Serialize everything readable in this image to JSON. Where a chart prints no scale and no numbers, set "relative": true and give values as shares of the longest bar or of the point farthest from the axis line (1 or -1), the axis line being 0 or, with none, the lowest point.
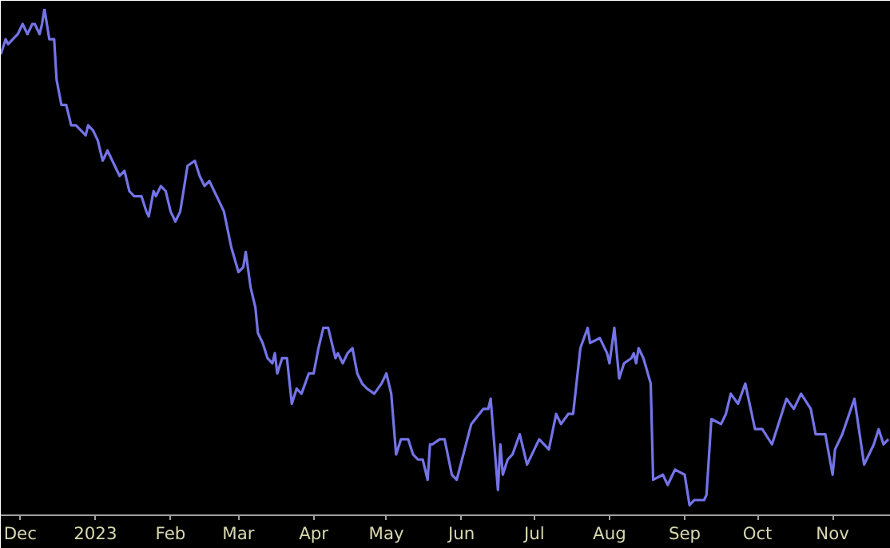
{
  "chart_data": {
    "type": "line",
    "relative": true,
    "x": [
      "2022-11-23",
      "2022-11-25",
      "2022-11-26",
      "2022-11-30",
      "2022-12-02",
      "2022-12-04",
      "2022-12-06",
      "2022-12-07",
      "2022-12-09",
      "2022-12-10",
      "2022-12-11",
      "2022-12-13",
      "2022-12-15",
      "2022-12-16",
      "2022-12-18",
      "2022-12-20",
      "2022-12-22",
      "2022-12-24",
      "2022-12-26",
      "2022-12-28",
      "2022-12-29",
      "2022-12-31",
      "2023-01-02",
      "2023-01-04",
      "2023-01-06",
      "2023-01-08",
      "2023-01-11",
      "2023-01-13",
      "2023-01-15",
      "2023-01-17",
      "2023-01-20",
      "2023-01-22",
      "2023-01-23",
      "2023-01-25",
      "2023-01-26",
      "2023-01-28",
      "2023-01-30",
      "2023-02-01",
      "2023-02-03",
      "2023-02-05",
      "2023-02-08",
      "2023-02-11",
      "2023-02-13",
      "2023-02-15",
      "2023-02-17",
      "2023-02-19",
      "2023-02-21",
      "2023-02-23",
      "2023-02-26",
      "2023-03-01",
      "2023-03-03",
      "2023-03-04",
      "2023-03-06",
      "2023-03-08",
      "2023-03-09",
      "2023-03-11",
      "2023-03-13",
      "2023-03-15",
      "2023-03-16",
      "2023-03-17",
      "2023-03-19",
      "2023-03-21",
      "2023-03-23",
      "2023-03-25",
      "2023-03-27",
      "2023-03-30",
      "2023-04-01",
      "2023-04-03",
      "2023-04-05",
      "2023-04-07",
      "2023-04-10",
      "2023-04-11",
      "2023-04-13",
      "2023-04-15",
      "2023-04-17",
      "2023-04-19",
      "2023-04-21",
      "2023-04-23",
      "2023-04-26",
      "2023-04-29",
      "2023-05-01",
      "2023-05-03",
      "2023-05-05",
      "2023-05-07",
      "2023-05-08",
      "2023-05-10",
      "2023-05-12",
      "2023-05-14",
      "2023-05-16",
      "2023-05-18",
      "2023-05-19",
      "2023-05-20",
      "2023-05-23",
      "2023-05-25",
      "2023-05-28",
      "2023-05-30",
      "2023-06-05",
      "2023-06-10",
      "2023-06-12",
      "2023-06-13",
      "2023-06-16",
      "2023-06-17",
      "2023-06-18",
      "2023-06-20",
      "2023-06-22",
      "2023-06-25",
      "2023-06-28",
      "2023-07-03",
      "2023-07-07",
      "2023-07-10",
      "2023-07-12",
      "2023-07-15",
      "2023-07-17",
      "2023-07-20",
      "2023-07-23",
      "2023-07-24",
      "2023-07-28",
      "2023-07-31",
      "2023-08-01",
      "2023-08-03",
      "2023-08-05",
      "2023-08-07",
      "2023-08-10",
      "2023-08-11",
      "2023-08-12",
      "2023-08-13",
      "2023-08-15",
      "2023-08-18",
      "2023-08-19",
      "2023-08-23",
      "2023-08-25",
      "2023-08-28",
      "2023-09-01",
      "2023-09-03",
      "2023-09-05",
      "2023-09-09",
      "2023-09-10",
      "2023-09-12",
      "2023-09-16",
      "2023-09-18",
      "2023-09-20",
      "2023-09-23",
      "2023-09-26",
      "2023-09-30",
      "2023-10-03",
      "2023-10-07",
      "2023-10-09",
      "2023-10-13",
      "2023-10-16",
      "2023-10-19",
      "2023-10-23",
      "2023-10-25",
      "2023-10-29",
      "2023-11-01",
      "2023-11-02",
      "2023-11-05",
      "2023-11-10",
      "2023-11-14",
      "2023-11-18",
      "2023-11-20",
      "2023-11-22",
      "2023-11-24"
    ],
    "series": [
      {
        "color": "#7474e8",
        "values": [
          0.91,
          0.94,
          0.93,
          0.95,
          0.97,
          0.95,
          0.97,
          0.97,
          0.95,
          0.97,
          1.0,
          0.94,
          0.94,
          0.86,
          0.81,
          0.81,
          0.77,
          0.77,
          0.76,
          0.75,
          0.77,
          0.76,
          0.74,
          0.7,
          0.72,
          0.7,
          0.67,
          0.68,
          0.64,
          0.63,
          0.63,
          0.6,
          0.59,
          0.64,
          0.63,
          0.65,
          0.64,
          0.6,
          0.58,
          0.6,
          0.69,
          0.7,
          0.67,
          0.65,
          0.66,
          0.64,
          0.62,
          0.6,
          0.53,
          0.48,
          0.49,
          0.52,
          0.45,
          0.41,
          0.36,
          0.34,
          0.31,
          0.3,
          0.32,
          0.28,
          0.31,
          0.31,
          0.22,
          0.25,
          0.24,
          0.28,
          0.28,
          0.33,
          0.37,
          0.37,
          0.31,
          0.32,
          0.3,
          0.32,
          0.33,
          0.28,
          0.26,
          0.25,
          0.24,
          0.26,
          0.28,
          0.24,
          0.12,
          0.15,
          0.15,
          0.15,
          0.12,
          0.11,
          0.11,
          0.07,
          0.14,
          0.14,
          0.15,
          0.15,
          0.08,
          0.07,
          0.18,
          0.21,
          0.21,
          0.23,
          0.05,
          0.14,
          0.08,
          0.11,
          0.12,
          0.16,
          0.1,
          0.15,
          0.13,
          0.2,
          0.18,
          0.2,
          0.2,
          0.33,
          0.37,
          0.34,
          0.35,
          0.32,
          0.3,
          0.37,
          0.27,
          0.3,
          0.31,
          0.32,
          0.3,
          0.33,
          0.31,
          0.26,
          0.07,
          0.08,
          0.06,
          0.09,
          0.08,
          0.02,
          0.03,
          0.03,
          0.04,
          0.19,
          0.18,
          0.2,
          0.24,
          0.22,
          0.26,
          0.17,
          0.17,
          0.14,
          0.17,
          0.23,
          0.21,
          0.24,
          0.21,
          0.16,
          0.16,
          0.08,
          0.13,
          0.16,
          0.23,
          0.1,
          0.14,
          0.17,
          0.14,
          0.15
        ]
      }
    ],
    "xlim": [
      "2022-11-23",
      "2023-11-25"
    ],
    "xticks": [
      {
        "value": "2022-12-01",
        "label": "Dec"
      },
      {
        "value": "2023-01-01",
        "label": "2023"
      },
      {
        "value": "2023-02-01",
        "label": "Feb"
      },
      {
        "value": "2023-03-01",
        "label": "Mar"
      },
      {
        "value": "2023-04-01",
        "label": "Apr"
      },
      {
        "value": "2023-05-01",
        "label": "May"
      },
      {
        "value": "2023-06-01",
        "label": "Jun"
      },
      {
        "value": "2023-07-01",
        "label": "Jul"
      },
      {
        "value": "2023-08-01",
        "label": "Aug"
      },
      {
        "value": "2023-09-01",
        "label": "Sep"
      },
      {
        "value": "2023-10-01",
        "label": "Oct"
      },
      {
        "value": "2023-11-01",
        "label": "Nov"
      }
    ],
    "grid": false,
    "marker": "none",
    "line_style": "solid"
  }
}
